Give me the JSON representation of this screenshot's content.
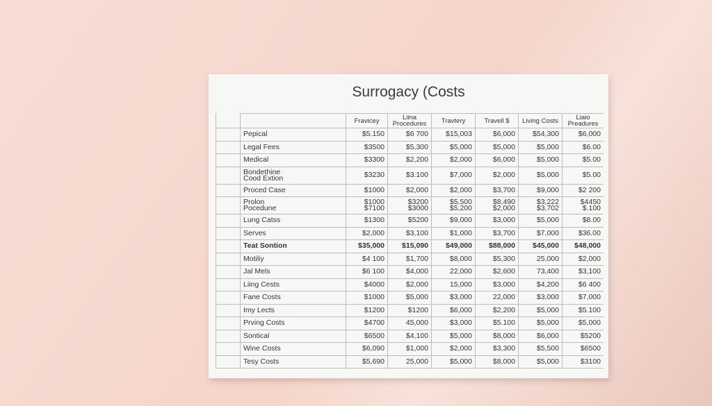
{
  "document": {
    "title": "Surrogacy (Costs",
    "header": [
      "",
      [
        "Fravicey"
      ],
      [
        "Liina",
        "Procedures"
      ],
      [
        "Travtery"
      ],
      [
        "Travell $"
      ],
      [
        "Living Costs"
      ],
      [
        "Liaio",
        "Preadures"
      ]
    ],
    "rows": [
      {
        "label": [
          "Pepical"
        ],
        "cells": [
          [
            "$5.150"
          ],
          [
            "$6 700"
          ],
          [
            "$15,003"
          ],
          [
            "$6,000"
          ],
          [
            "$54,300"
          ],
          [
            "$6,000"
          ]
        ]
      },
      {
        "label": [
          "Legal Fees"
        ],
        "cells": [
          [
            "$3500"
          ],
          [
            "$5,300"
          ],
          [
            "$5,000"
          ],
          [
            "$5,000"
          ],
          [
            "$5,000"
          ],
          [
            "$6.00"
          ]
        ]
      },
      {
        "label": [
          "Medical"
        ],
        "cells": [
          [
            "$3300"
          ],
          [
            "$2,200"
          ],
          [
            "$2,000"
          ],
          [
            "$6,000"
          ],
          [
            "$5,000"
          ],
          [
            "$5.00"
          ]
        ]
      },
      {
        "label": [
          "Bondethine",
          "Cood Extion"
        ],
        "cells": [
          [
            "$3230"
          ],
          [
            "$3.100"
          ],
          [
            "$7,000"
          ],
          [
            "$2,000"
          ],
          [
            "$5,000"
          ],
          [
            "$5.00"
          ]
        ]
      },
      {
        "label": [
          "Proced Case"
        ],
        "cells": [
          [
            "$1000"
          ],
          [
            "$2,000"
          ],
          [
            "$2,000"
          ],
          [
            "$3,700"
          ],
          [
            "$9,000"
          ],
          [
            "$2 200"
          ]
        ]
      },
      {
        "label": [
          "Prolon",
          "Pocedune"
        ],
        "cells": [
          [
            "$1000",
            "$7100"
          ],
          [
            "$3200",
            "$3000"
          ],
          [
            "$5,500",
            "$5,200"
          ],
          [
            "$8,490",
            "$2,000"
          ],
          [
            "$3,222",
            "$3,702"
          ],
          [
            "$4450",
            "$.100"
          ]
        ]
      },
      {
        "label": [
          "Lung Catss"
        ],
        "cells": [
          [
            "$1300"
          ],
          [
            "$5200"
          ],
          [
            "$9,000"
          ],
          [
            "$3,000"
          ],
          [
            "$5,000"
          ],
          [
            "$8.00"
          ]
        ]
      },
      {
        "label": [
          "Serves"
        ],
        "cells": [
          [
            "$2,000"
          ],
          [
            "$3,100"
          ],
          [
            "$1,000"
          ],
          [
            "$3,700"
          ],
          [
            "$7,000"
          ],
          [
            "$36.00"
          ]
        ]
      },
      {
        "label": [
          "Teat Sontion"
        ],
        "bold": true,
        "cells": [
          [
            "$35,000"
          ],
          [
            "$15,090"
          ],
          [
            "$49,000"
          ],
          [
            "$88,000"
          ],
          [
            "$45,000"
          ],
          [
            "$48,000"
          ]
        ]
      },
      {
        "label": [
          "Motiliy"
        ],
        "cells": [
          [
            "$4 100"
          ],
          [
            "$1,700"
          ],
          [
            "$8,000"
          ],
          [
            "$5,300"
          ],
          [
            "25,000"
          ],
          [
            "$2,000"
          ]
        ]
      },
      {
        "label": [
          "Jal Mels"
        ],
        "cells": [
          [
            "$6 100"
          ],
          [
            "$4,000"
          ],
          [
            "22,000"
          ],
          [
            "$2,600"
          ],
          [
            "73,400"
          ],
          [
            "$3,100"
          ]
        ]
      },
      {
        "label": [
          "Liing Cests"
        ],
        "cells": [
          [
            "$4000"
          ],
          [
            "$2,000"
          ],
          [
            "15,000"
          ],
          [
            "$3,000"
          ],
          [
            "$4,200"
          ],
          [
            "$6 400"
          ]
        ]
      },
      {
        "label": [
          "Fane Costs"
        ],
        "cells": [
          [
            "$1000"
          ],
          [
            "$5,000"
          ],
          [
            "$3,000"
          ],
          [
            "22,000"
          ],
          [
            "$3,000"
          ],
          [
            "$7,000"
          ]
        ]
      },
      {
        "label": [
          "Imy Lects"
        ],
        "cells": [
          [
            "$1200"
          ],
          [
            "$1200"
          ],
          [
            "$6,000"
          ],
          [
            "$2,200"
          ],
          [
            "$5,000"
          ],
          [
            "$5.100"
          ]
        ]
      },
      {
        "label": [
          "Prving Costs"
        ],
        "cells": [
          [
            "$4700"
          ],
          [
            "45,000"
          ],
          [
            "$3,000"
          ],
          [
            "$5.100"
          ],
          [
            "$5,000"
          ],
          [
            "$5,000"
          ]
        ]
      },
      {
        "label": [
          "Sontical"
        ],
        "cells": [
          [
            "$6500"
          ],
          [
            "$4,100"
          ],
          [
            "$5,000"
          ],
          [
            "$8,000"
          ],
          [
            "$6,000"
          ],
          [
            "$5200"
          ]
        ]
      },
      {
        "label": [
          "Wine Costs"
        ],
        "cells": [
          [
            "$6,090"
          ],
          [
            "$1,000"
          ],
          [
            "$2,000"
          ],
          [
            "$3,300"
          ],
          [
            "$5,500"
          ],
          [
            "$6500"
          ]
        ]
      },
      {
        "label": [
          "Tesy Costs"
        ],
        "cells": [
          [
            "$5,690"
          ],
          [
            "25,000"
          ],
          [
            "$5,000"
          ],
          [
            "$8,000"
          ],
          [
            "$5,000"
          ],
          [
            "$3100"
          ]
        ]
      }
    ]
  }
}
